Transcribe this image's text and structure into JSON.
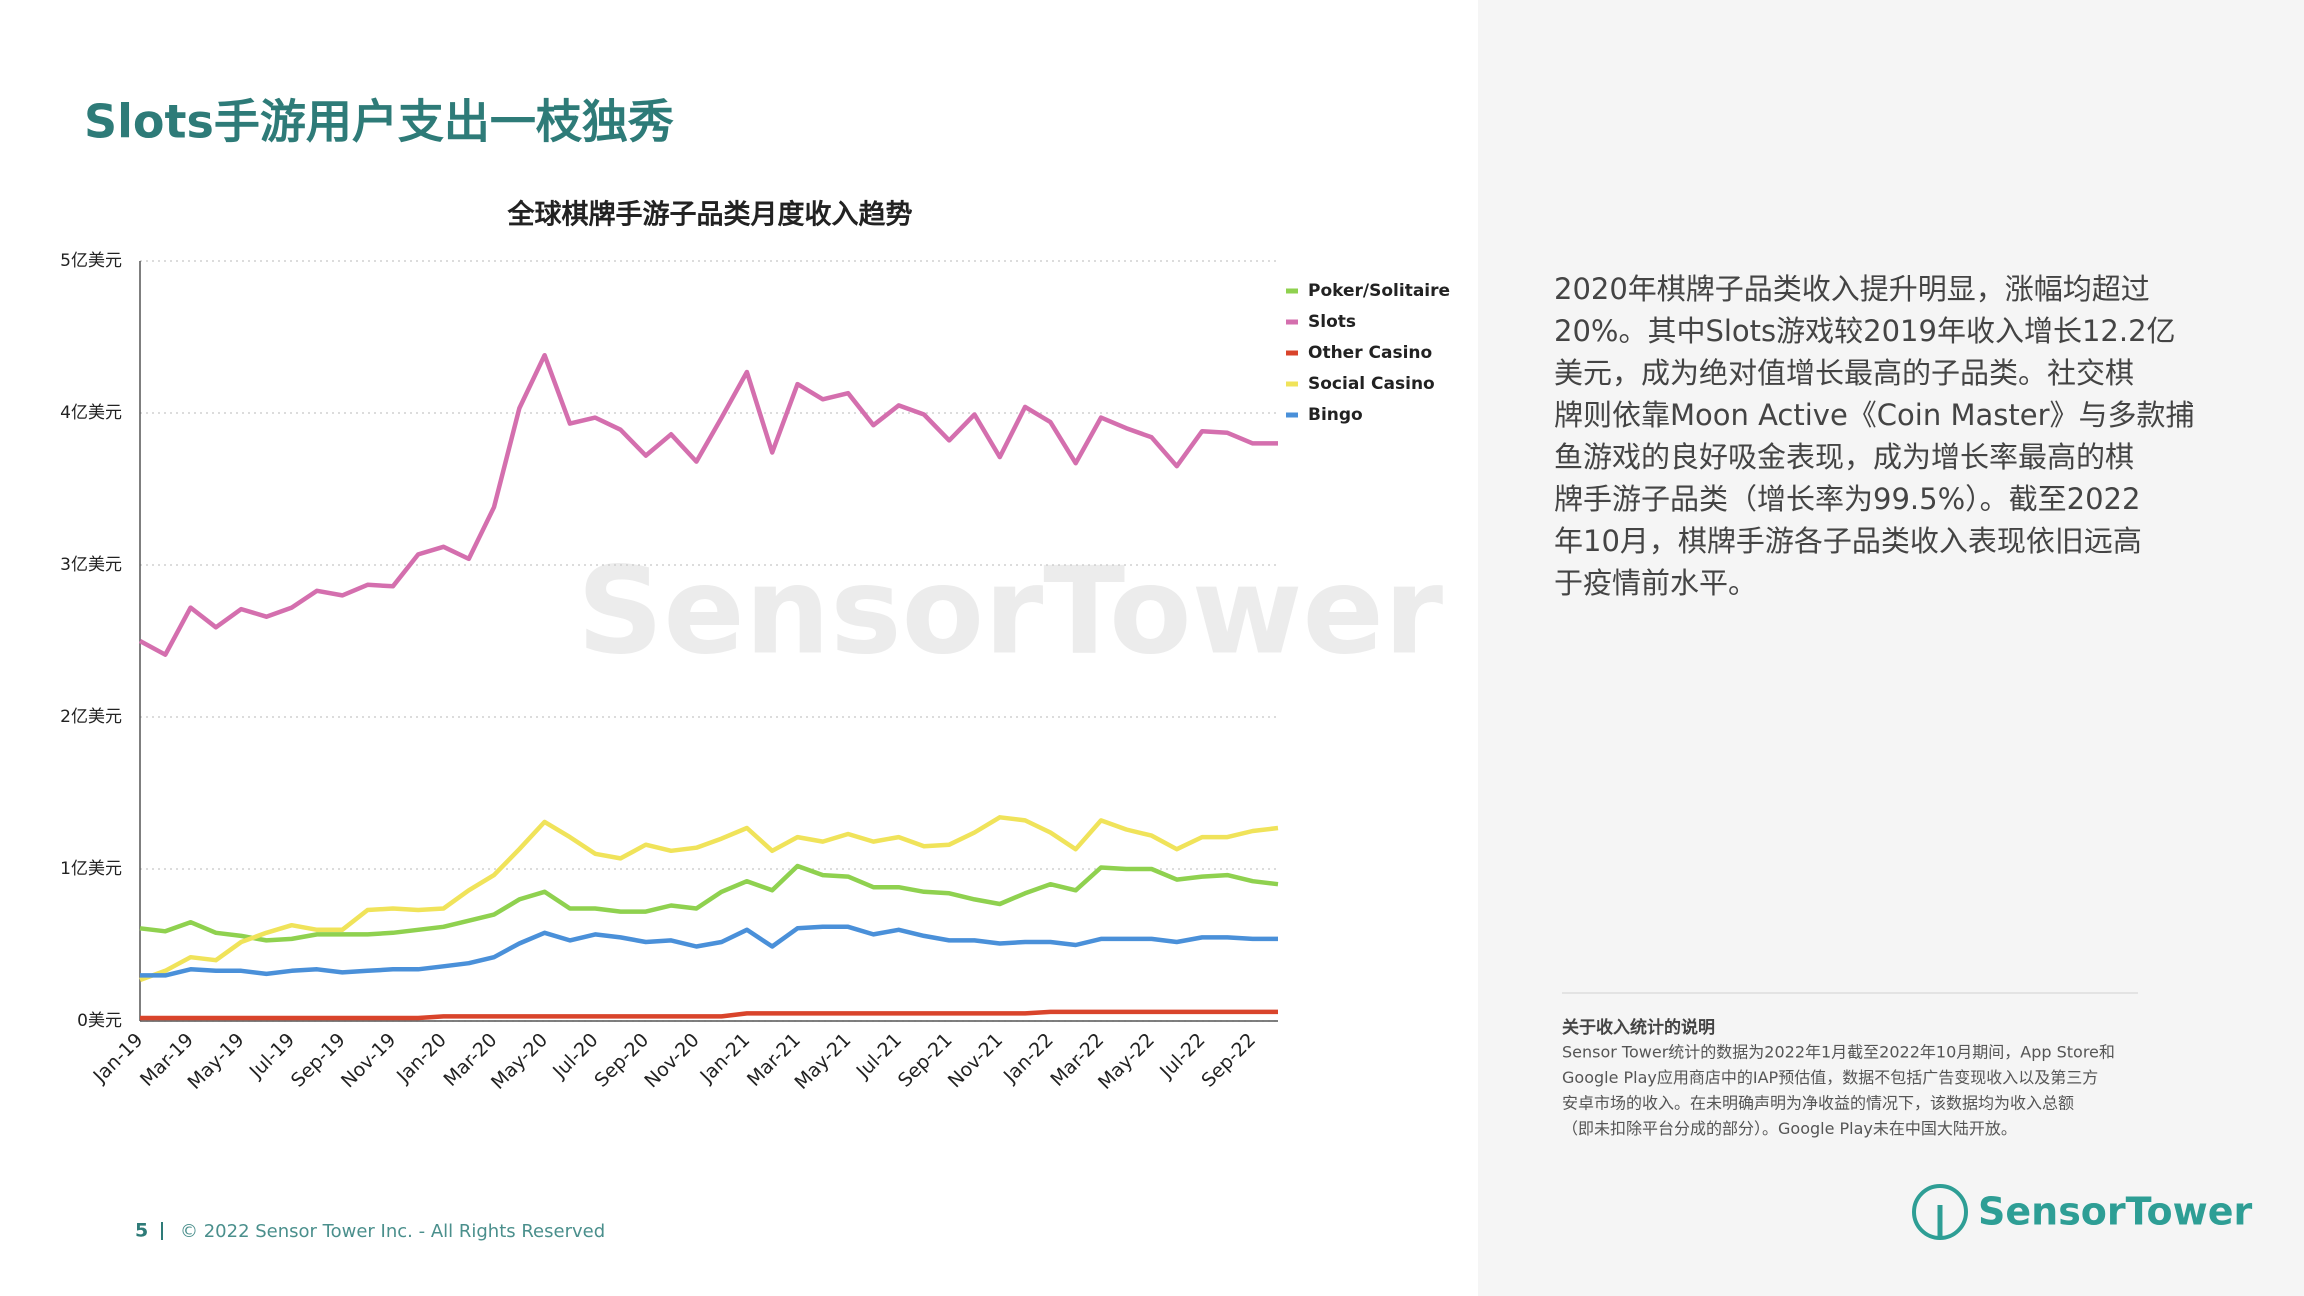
{
  "page": {
    "title": "Slots手游用户支出一枝独秀",
    "paragraph": [
      "2020年棋牌子品类收入提升明显，涨幅均超过",
      "20%。其中Slots游戏较2019年收入增长12.2亿",
      "美元，成为绝对值增长最高的子品类。社交棋",
      "牌则依靠Moon Active《Coin Master》与多款捕",
      "鱼游戏的良好吸金表现，成为增长率最高的棋",
      "牌手游子品类（增长率为99.5%）。截至2022",
      "年10月，棋牌手游各子品类收入表现依旧远高",
      "于疫情前水平。"
    ],
    "note_title": "关于收入统计的说明",
    "note": [
      "Sensor Tower统计的数据为2022年1月截至2022年10月期间，App Store和",
      "Google Play应用商店中的IAP预估值，数据不包括广告变现收入以及第三方",
      "安卓市场的收入。在未明确声明为净收益的情况下，该数据均为收入总额",
      "（即未扣除平台分成的部分）。Google Play未在中国大陆开放。"
    ],
    "page_number": "5",
    "copyright": "© 2022 Sensor Tower Inc. - All Rights Reserved",
    "logo": "SensorTower"
  },
  "chart_data": {
    "type": "line",
    "title": "全球棋牌手游子品类月度收入趋势",
    "categories": [
      "Jan-19",
      null,
      "Mar-19",
      null,
      "May-19",
      null,
      "Jul-19",
      null,
      "Sep-19",
      null,
      "Nov-19",
      null,
      "Jan-20",
      null,
      "Mar-20",
      null,
      "May-20",
      null,
      "Jul-20",
      null,
      "Sep-20",
      null,
      "Nov-20",
      null,
      "Jan-21",
      null,
      "Mar-21",
      null,
      "May-21",
      null,
      "Jul-21",
      null,
      "Sep-21",
      null,
      "Nov-21",
      null,
      "Jan-22",
      null,
      "Mar-22",
      null,
      "May-22",
      null,
      "Jul-22",
      null,
      "Sep-22",
      null
    ],
    "ylim": [
      0,
      5
    ],
    "yticks": [
      {
        "value": 0,
        "label": "0美元"
      },
      {
        "value": 1,
        "label": "1亿美元"
      },
      {
        "value": 2,
        "label": "2亿美元"
      },
      {
        "value": 3,
        "label": "3亿美元"
      },
      {
        "value": 4,
        "label": "4亿美元"
      },
      {
        "value": 5,
        "label": "5亿美元"
      }
    ],
    "grid": true,
    "legend": "right",
    "series": [
      {
        "name": "Poker/Solitaire",
        "color": "#8fd14f",
        "values": [
          0.61,
          0.59,
          0.65,
          0.58,
          0.56,
          0.53,
          0.54,
          0.57,
          0.57,
          0.57,
          0.58,
          0.6,
          0.62,
          0.66,
          0.7,
          0.8,
          0.85,
          0.74,
          0.74,
          0.72,
          0.72,
          0.76,
          0.74,
          0.85,
          0.92,
          0.86,
          1.02,
          0.96,
          0.95,
          0.88,
          0.88,
          0.85,
          0.84,
          0.8,
          0.77,
          0.84,
          0.9,
          0.86,
          1.01,
          1.0,
          1.0,
          0.93,
          0.95,
          0.96,
          0.92,
          0.9
        ]
      },
      {
        "name": "Slots",
        "color": "#d46fae",
        "values": [
          2.5,
          2.41,
          2.72,
          2.59,
          2.71,
          2.66,
          2.72,
          2.83,
          2.8,
          2.87,
          2.86,
          3.07,
          3.12,
          3.04,
          3.38,
          4.03,
          4.38,
          3.93,
          3.97,
          3.89,
          3.72,
          3.86,
          3.68,
          3.97,
          4.27,
          3.74,
          4.19,
          4.09,
          4.13,
          3.92,
          4.05,
          3.99,
          3.82,
          3.99,
          3.71,
          4.04,
          3.94,
          3.67,
          3.97,
          3.9,
          3.84,
          3.65,
          3.88,
          3.87,
          3.8,
          3.8
        ]
      },
      {
        "name": "Other Casino",
        "color": "#d9442b",
        "values": [
          0.02,
          0.02,
          0.02,
          0.02,
          0.02,
          0.02,
          0.02,
          0.02,
          0.02,
          0.02,
          0.02,
          0.02,
          0.03,
          0.03,
          0.03,
          0.03,
          0.03,
          0.03,
          0.03,
          0.03,
          0.03,
          0.03,
          0.03,
          0.03,
          0.05,
          0.05,
          0.05,
          0.05,
          0.05,
          0.05,
          0.05,
          0.05,
          0.05,
          0.05,
          0.05,
          0.05,
          0.06,
          0.06,
          0.06,
          0.06,
          0.06,
          0.06,
          0.06,
          0.06,
          0.06,
          0.06
        ]
      },
      {
        "name": "Social Casino",
        "color": "#f0e35a",
        "values": [
          0.27,
          0.33,
          0.42,
          0.4,
          0.52,
          0.58,
          0.63,
          0.6,
          0.6,
          0.73,
          0.74,
          0.73,
          0.74,
          0.86,
          0.96,
          1.13,
          1.31,
          1.21,
          1.1,
          1.07,
          1.16,
          1.12,
          1.14,
          1.2,
          1.27,
          1.12,
          1.21,
          1.18,
          1.23,
          1.18,
          1.21,
          1.15,
          1.16,
          1.24,
          1.34,
          1.32,
          1.24,
          1.13,
          1.32,
          1.26,
          1.22,
          1.13,
          1.21,
          1.21,
          1.25,
          1.27
        ]
      },
      {
        "name": "Bingo",
        "color": "#4a90d9",
        "values": [
          0.3,
          0.3,
          0.34,
          0.33,
          0.33,
          0.31,
          0.33,
          0.34,
          0.32,
          0.33,
          0.34,
          0.34,
          0.36,
          0.38,
          0.42,
          0.51,
          0.58,
          0.53,
          0.57,
          0.55,
          0.52,
          0.53,
          0.49,
          0.52,
          0.6,
          0.49,
          0.61,
          0.62,
          0.62,
          0.57,
          0.6,
          0.56,
          0.53,
          0.53,
          0.51,
          0.52,
          0.52,
          0.5,
          0.54,
          0.54,
          0.54,
          0.52,
          0.55,
          0.55,
          0.54,
          0.54
        ]
      }
    ]
  }
}
